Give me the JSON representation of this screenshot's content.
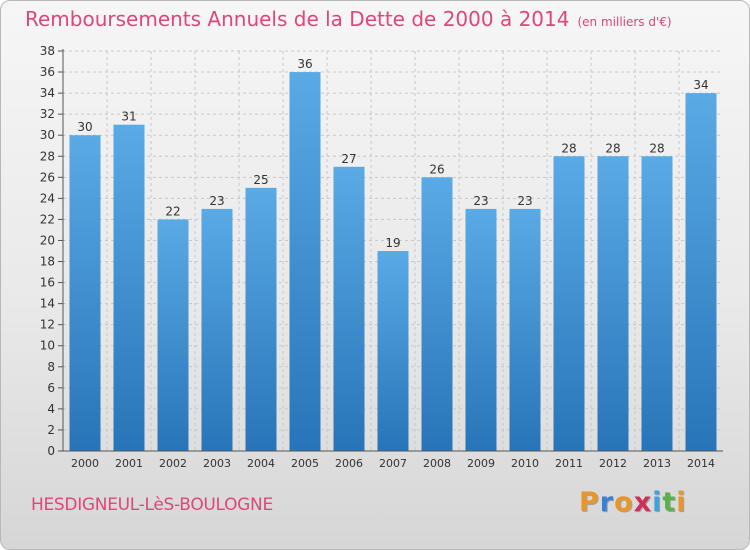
{
  "title": "Remboursements Annuels de la Dette de 2000 à 2014",
  "unit": "(en milliers d'€)",
  "commune": "HESDIGNEUL-LèS-BOULOGNE",
  "logo": {
    "letters": [
      "P",
      "r",
      "o",
      "x",
      "i",
      "t",
      "i"
    ],
    "colors": [
      "#e8952a",
      "#3b7fd6",
      "#e8952a",
      "#cc2f57",
      "#3ba3dd",
      "#5ab04a",
      "#e8952a"
    ]
  },
  "colors": {
    "accent": "#e0457b",
    "bar_top": "#5aaae6",
    "bar_bottom": "#2874b8",
    "grid": "#c8c8c8",
    "axis_text": "#333333"
  },
  "chart_data": {
    "type": "bar",
    "categories": [
      "2000",
      "2001",
      "2002",
      "2003",
      "2004",
      "2005",
      "2006",
      "2007",
      "2008",
      "2009",
      "2010",
      "2011",
      "2012",
      "2013",
      "2014"
    ],
    "values": [
      30,
      31,
      22,
      23,
      25,
      36,
      27,
      19,
      26,
      23,
      23,
      28,
      28,
      28,
      34
    ],
    "ylim": [
      0,
      38
    ],
    "yticks": [
      0,
      2,
      4,
      6,
      8,
      10,
      12,
      14,
      16,
      18,
      20,
      22,
      24,
      26,
      28,
      30,
      32,
      34,
      36,
      38
    ],
    "grid": true,
    "data_labels": true
  }
}
